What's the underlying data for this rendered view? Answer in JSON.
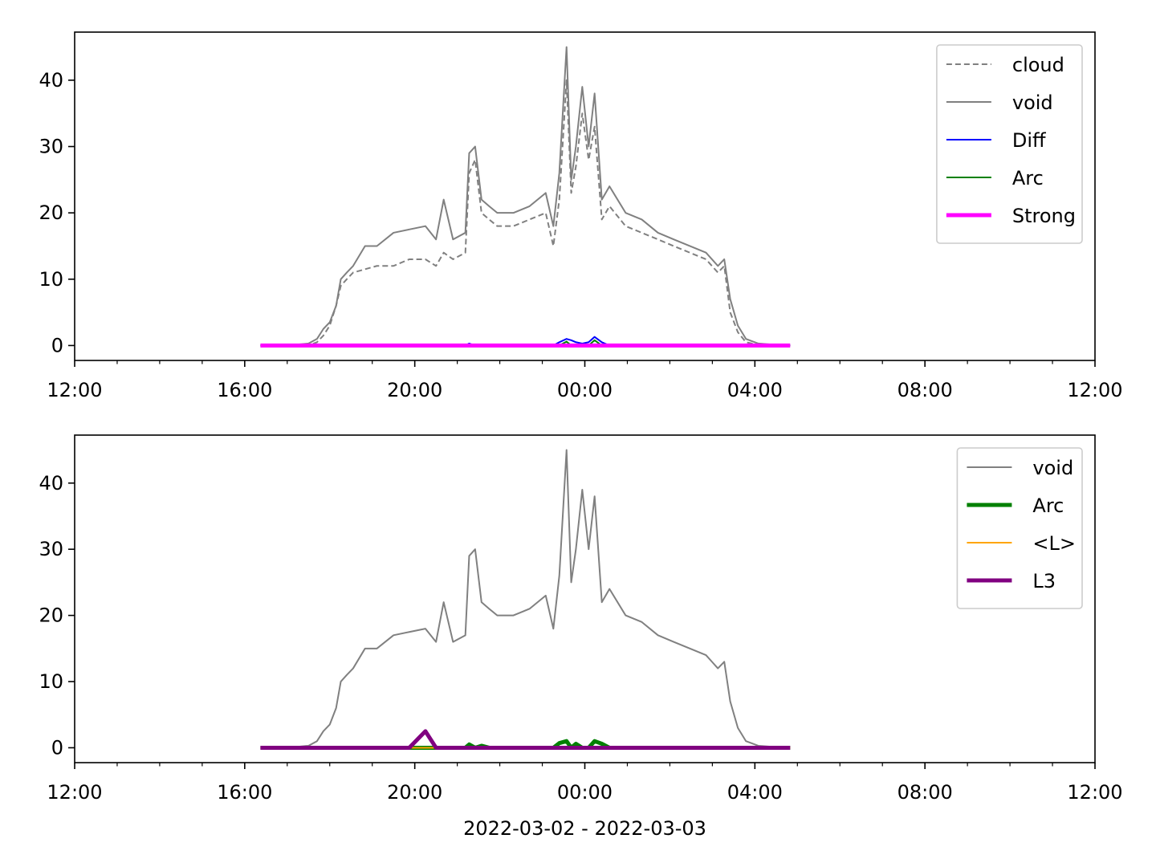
{
  "chart_data": [
    {
      "type": "line",
      "x": [
        4.37,
        5.0,
        5.5,
        5.7,
        5.85,
        6.0,
        6.15,
        6.26,
        6.4,
        6.55,
        6.83,
        7.11,
        7.5,
        7.87,
        8.25,
        8.5,
        8.68,
        8.9,
        9.19,
        9.28,
        9.42,
        9.57,
        9.75,
        9.94,
        10.32,
        10.7,
        11.08,
        11.26,
        11.4,
        11.57,
        11.68,
        11.79,
        11.94,
        12.09,
        12.23,
        12.4,
        12.58,
        12.96,
        13.34,
        13.72,
        14.09,
        14.47,
        14.85,
        15.13,
        15.28,
        15.42,
        15.6,
        15.79,
        16.08,
        16.5,
        16.83
      ],
      "xlim": [
        0,
        24
      ],
      "xticks": [
        {
          "value": 0,
          "label": "12:00"
        },
        {
          "value": 4,
          "label": "16:00"
        },
        {
          "value": 8,
          "label": "20:00"
        },
        {
          "value": 12,
          "label": "00:00"
        },
        {
          "value": 16,
          "label": "04:00"
        },
        {
          "value": 20,
          "label": "08:00"
        },
        {
          "value": 24,
          "label": "12:00"
        }
      ],
      "xminorticks": [
        1,
        2,
        3,
        5,
        6,
        7,
        9,
        10,
        11,
        13,
        14,
        15,
        17,
        18,
        19,
        21,
        22,
        23
      ],
      "ylim": [
        -2.25,
        47.25
      ],
      "yticks": [
        0,
        10,
        20,
        30,
        40
      ],
      "legend": "upper right",
      "series": [
        {
          "name": "cloud",
          "color": "#808080",
          "dash": true,
          "width": 2,
          "values": [
            0,
            0,
            0,
            0.5,
            1.5,
            3,
            6,
            9,
            10,
            11,
            11.5,
            12,
            12,
            13,
            13,
            12,
            14,
            13,
            14,
            26,
            28,
            20,
            19,
            18,
            18,
            19,
            20,
            15,
            22,
            40,
            23,
            27,
            35,
            28,
            33,
            19,
            21,
            18,
            17,
            16,
            15,
            14,
            13,
            11,
            12,
            5,
            2,
            0.5,
            0.1,
            0,
            0
          ]
        },
        {
          "name": "void",
          "color": "#808080",
          "dash": false,
          "width": 2,
          "values": [
            0,
            0,
            0.3,
            1,
            2.5,
            3.5,
            6,
            10,
            11,
            12,
            15,
            15,
            17,
            17.5,
            18,
            16,
            22,
            16,
            17,
            29,
            30,
            22,
            21,
            20,
            20,
            21,
            23,
            18,
            26,
            45,
            25,
            30,
            39,
            30,
            38,
            22,
            24,
            20,
            19,
            17,
            16,
            15,
            14,
            12,
            13,
            7,
            3,
            1,
            0.3,
            0.1,
            0
          ]
        },
        {
          "name": "Diff",
          "color": "#0000ff",
          "dash": false,
          "width": 2,
          "values": [
            0,
            0,
            0,
            0,
            0,
            0,
            0,
            0,
            0,
            0,
            0,
            0,
            0,
            0,
            0,
            0,
            0,
            0,
            0,
            0.3,
            0,
            0,
            0,
            0,
            0,
            0,
            0,
            0,
            0.5,
            1,
            0.8,
            0.5,
            0.3,
            0.5,
            1.3,
            0.5,
            0,
            0,
            0,
            0,
            0,
            0,
            0,
            0,
            0,
            0,
            0,
            0,
            0,
            0,
            0
          ]
        },
        {
          "name": "Arc",
          "color": "#008000",
          "dash": false,
          "width": 2,
          "values": [
            0,
            0,
            0,
            0,
            0,
            0,
            0,
            0,
            0,
            0,
            0,
            0,
            0,
            0,
            0,
            0,
            0,
            0,
            0,
            0,
            0,
            0,
            0,
            0,
            0,
            0,
            0,
            0,
            0,
            0.6,
            0,
            0,
            0,
            0,
            0.8,
            0,
            0,
            0,
            0,
            0,
            0,
            0,
            0,
            0,
            0,
            0,
            0,
            0,
            0,
            0,
            0
          ]
        },
        {
          "name": "Strong",
          "color": "#ff00ff",
          "dash": false,
          "width": 5,
          "values": [
            0,
            0,
            0,
            0,
            0,
            0,
            0,
            0,
            0,
            0,
            0,
            0,
            0,
            0,
            0,
            0,
            0,
            0,
            0,
            0,
            0,
            0,
            0,
            0,
            0,
            0,
            0,
            0,
            0,
            0,
            0,
            0,
            0,
            0,
            0,
            0,
            0,
            0,
            0,
            0,
            0,
            0,
            0,
            0,
            0,
            0,
            0,
            0,
            0,
            0,
            0
          ]
        }
      ]
    },
    {
      "type": "line",
      "x": [
        4.37,
        5.0,
        5.5,
        5.7,
        5.85,
        6.0,
        6.15,
        6.26,
        6.4,
        6.55,
        6.83,
        7.11,
        7.5,
        7.87,
        8.25,
        8.5,
        8.68,
        8.9,
        9.19,
        9.28,
        9.42,
        9.57,
        9.75,
        9.94,
        10.32,
        10.7,
        11.08,
        11.26,
        11.4,
        11.57,
        11.68,
        11.79,
        11.94,
        12.09,
        12.23,
        12.4,
        12.58,
        12.96,
        13.34,
        13.72,
        14.09,
        14.47,
        14.85,
        15.13,
        15.28,
        15.42,
        15.6,
        15.79,
        16.08,
        16.5,
        16.83
      ],
      "xlim": [
        0,
        24
      ],
      "xticks": [
        {
          "value": 0,
          "label": "12:00"
        },
        {
          "value": 4,
          "label": "16:00"
        },
        {
          "value": 8,
          "label": "20:00"
        },
        {
          "value": 12,
          "label": "00:00"
        },
        {
          "value": 16,
          "label": "04:00"
        },
        {
          "value": 20,
          "label": "08:00"
        },
        {
          "value": 24,
          "label": "12:00"
        }
      ],
      "xminorticks": [
        1,
        2,
        3,
        5,
        6,
        7,
        9,
        10,
        11,
        13,
        14,
        15,
        17,
        18,
        19,
        21,
        22,
        23
      ],
      "xlabel": "2022-03-02 - 2022-03-03",
      "ylim": [
        -2.25,
        47.25
      ],
      "yticks": [
        0,
        10,
        20,
        30,
        40
      ],
      "legend": "upper right",
      "series": [
        {
          "name": "void",
          "color": "#808080",
          "dash": false,
          "width": 2,
          "values": [
            0,
            0,
            0.3,
            1,
            2.5,
            3.5,
            6,
            10,
            11,
            12,
            15,
            15,
            17,
            17.5,
            18,
            16,
            22,
            16,
            17,
            29,
            30,
            22,
            21,
            20,
            20,
            21,
            23,
            18,
            26,
            45,
            25,
            30,
            39,
            30,
            38,
            22,
            24,
            20,
            19,
            17,
            16,
            15,
            14,
            12,
            13,
            7,
            3,
            1,
            0.3,
            0.1,
            0
          ]
        },
        {
          "name": "Arc",
          "color": "#008000",
          "dash": false,
          "width": 5,
          "values": [
            0,
            0,
            0,
            0,
            0,
            0,
            0,
            0,
            0,
            0,
            0,
            0,
            0,
            0,
            0,
            0,
            0,
            0,
            0,
            0.5,
            0,
            0.3,
            0,
            0,
            0,
            0,
            0,
            0,
            0.7,
            1,
            0,
            0.6,
            0,
            0,
            1,
            0.6,
            0,
            0,
            0,
            0,
            0,
            0,
            0,
            0,
            0,
            0,
            0,
            0,
            0,
            0,
            0
          ]
        },
        {
          "name": "<L>",
          "color": "#ffa500",
          "dash": false,
          "width": 2,
          "values": [
            0,
            0,
            0,
            0,
            0,
            0,
            0,
            0,
            0,
            0,
            0,
            0,
            0,
            0,
            0,
            0,
            0,
            0,
            0,
            0,
            0,
            0,
            0,
            0,
            0,
            0,
            0,
            0,
            0,
            0,
            0,
            0,
            0,
            0,
            0,
            0,
            0,
            0,
            0,
            0,
            0,
            0,
            0,
            0,
            0,
            0,
            0,
            0,
            0,
            0,
            0
          ]
        },
        {
          "name": "L3",
          "color": "#800080",
          "dash": false,
          "width": 5,
          "values": [
            0,
            0,
            0,
            0,
            0,
            0,
            0,
            0,
            0,
            0,
            0,
            0,
            0,
            0,
            2.5,
            0,
            0,
            0,
            0,
            0,
            0,
            0,
            0,
            0,
            0,
            0,
            0,
            0,
            0,
            0,
            0,
            0,
            0,
            0,
            0,
            0,
            0,
            0,
            0,
            0,
            0,
            0,
            0,
            0,
            0,
            0,
            0,
            0,
            0,
            0,
            0
          ]
        }
      ]
    }
  ]
}
